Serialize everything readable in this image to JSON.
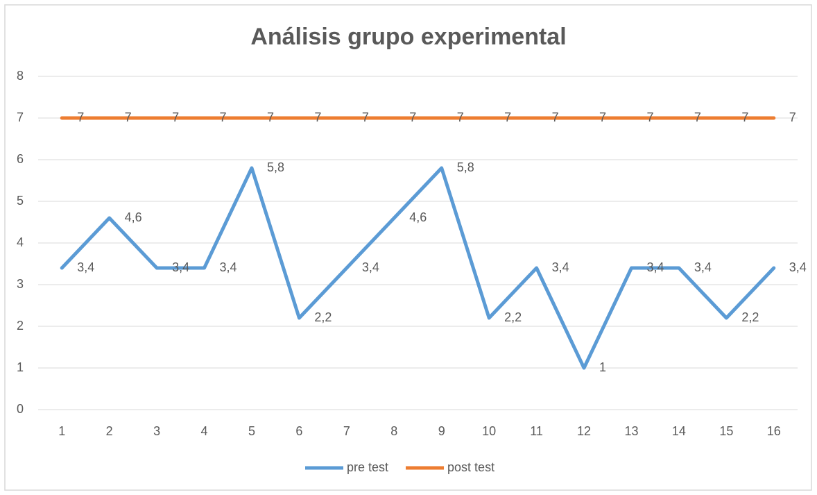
{
  "chart_data": {
    "type": "line",
    "title": "Análisis grupo experimental",
    "categories": [
      "1",
      "2",
      "3",
      "4",
      "5",
      "6",
      "7",
      "8",
      "9",
      "10",
      "11",
      "12",
      "13",
      "14",
      "15",
      "16"
    ],
    "series": [
      {
        "name": "pre test",
        "color": "#5b9bd5",
        "values": [
          3.4,
          4.6,
          3.4,
          3.4,
          5.8,
          2.2,
          3.4,
          4.6,
          5.8,
          2.2,
          3.4,
          1,
          3.4,
          3.4,
          2.2,
          3.4
        ],
        "value_labels": [
          "3,4",
          "4,6",
          "3,4",
          "3,4",
          "5,8",
          "2,2",
          "3,4",
          "4,6",
          "5,8",
          "2,2",
          "3,4",
          "1",
          "3,4",
          "3,4",
          "2,2",
          "3,4"
        ]
      },
      {
        "name": "post test",
        "color": "#ed7d31",
        "values": [
          7,
          7,
          7,
          7,
          7,
          7,
          7,
          7,
          7,
          7,
          7,
          7,
          7,
          7,
          7,
          7
        ]
      }
    ],
    "ylim": [
      0,
      8
    ],
    "yticks": [
      0,
      1,
      2,
      3,
      4,
      5,
      6,
      7,
      8
    ],
    "grid": true,
    "legend": "bottom"
  }
}
